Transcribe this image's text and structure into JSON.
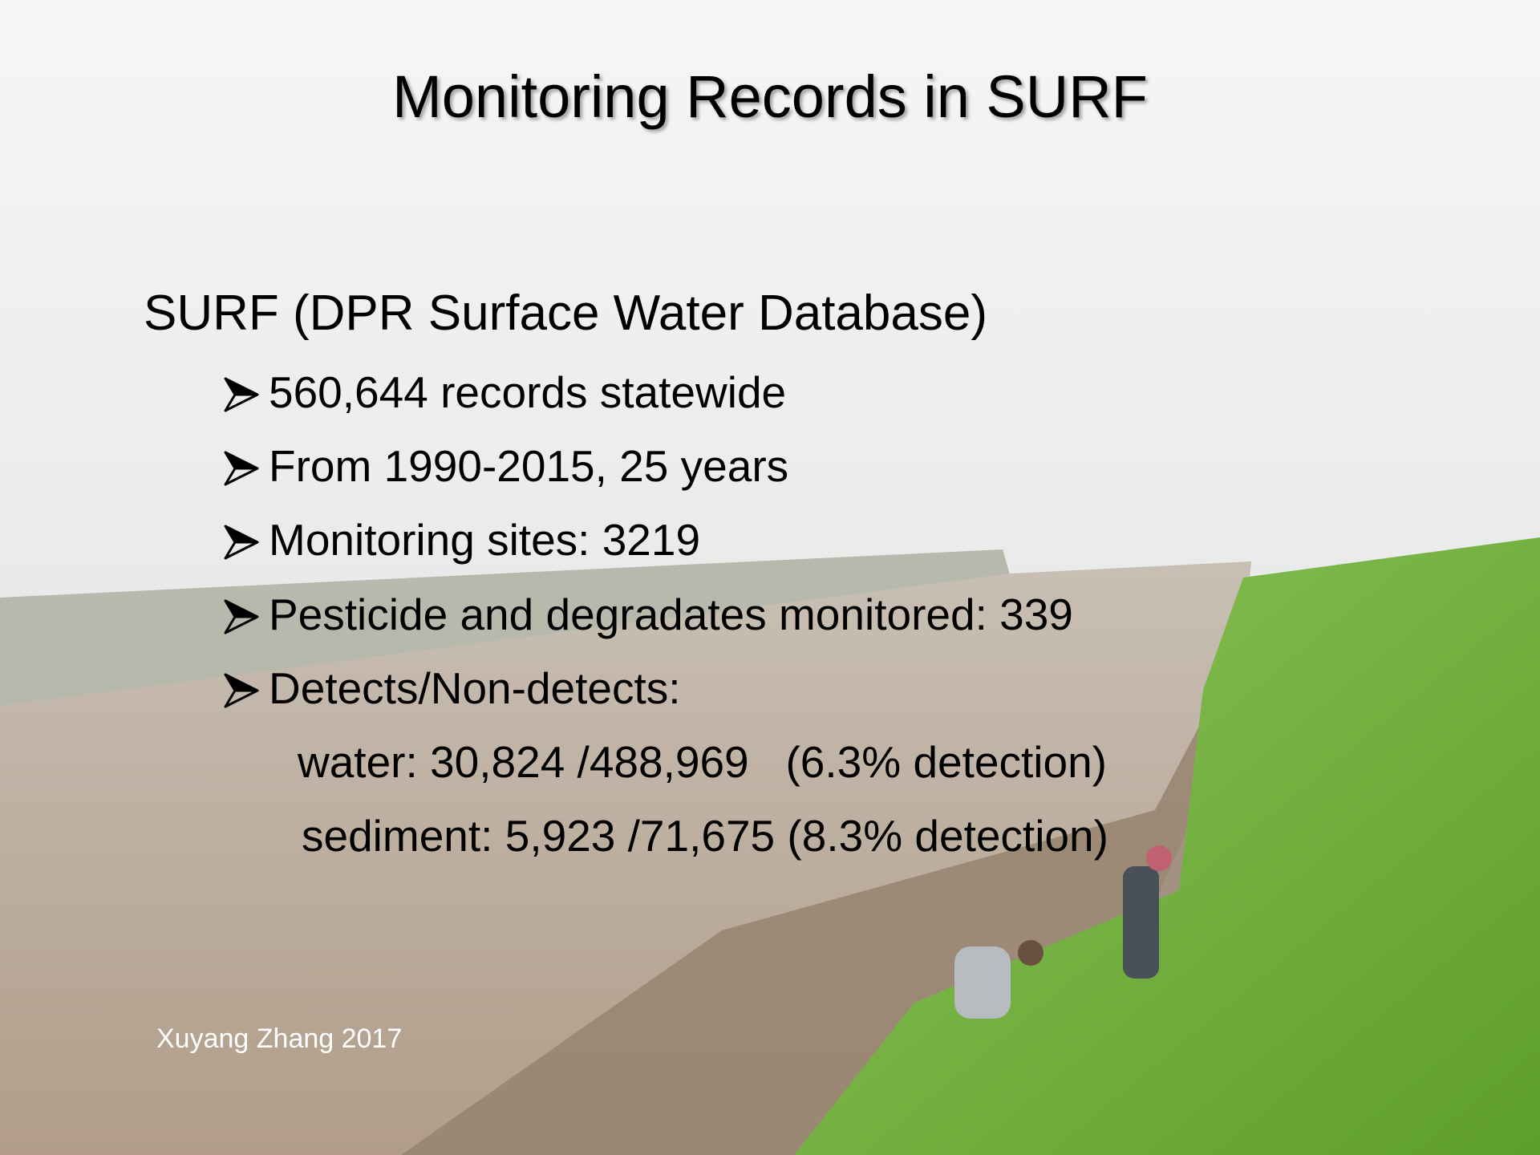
{
  "slide": {
    "title": "Monitoring Records in SURF",
    "heading": "SURF (DPR Surface Water Database)",
    "bullets": [
      "560,644 records statewide",
      "From 1990-2015, 25 years",
      "Monitoring sites: 3219",
      "Pesticide and degradates monitored: 339",
      "Detects/Non-detects:"
    ],
    "details": [
      "water: 30,824 /488,969   (6.3% detection)",
      "sediment: 5,923 /71,675 (8.3% detection)"
    ],
    "footer": "Xuyang Zhang 2017"
  }
}
